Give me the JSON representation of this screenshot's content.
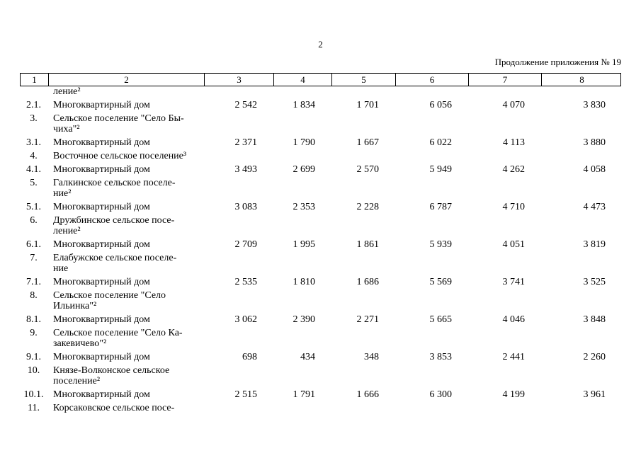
{
  "page": {
    "number": "2",
    "header_note": "Продолжение приложения № 19"
  },
  "table": {
    "column_numbers": [
      "1",
      "2",
      "3",
      "4",
      "5",
      "6",
      "7",
      "8"
    ],
    "rows": [
      {
        "num": "",
        "name": "ление²"
      },
      {
        "num": "2.1.",
        "name": "Многоквартирный дом",
        "v": [
          "2 542",
          "1 834",
          "1 701",
          "6 056",
          "4 070",
          "3 830"
        ]
      },
      {
        "num": "3.",
        "name": "Сельское поселение \"Село Бы-\nчиха\"²"
      },
      {
        "num": "3.1.",
        "name": "Многоквартирный дом",
        "v": [
          "2 371",
          "1 790",
          "1 667",
          "6 022",
          "4 113",
          "3 880"
        ]
      },
      {
        "num": "4.",
        "name": "Восточное сельское поселение³"
      },
      {
        "num": "4.1.",
        "name": "Многоквартирный дом",
        "v": [
          "3 493",
          "2 699",
          "2 570",
          "5 949",
          "4 262",
          "4 058"
        ]
      },
      {
        "num": "5.",
        "name": "Галкинское сельское поселе-\nние²"
      },
      {
        "num": "5.1.",
        "name": "Многоквартирный дом",
        "v": [
          "3 083",
          "2 353",
          "2 228",
          "6 787",
          "4 710",
          "4 473"
        ]
      },
      {
        "num": "6.",
        "name": "Дружбинское сельское посе-\nление²"
      },
      {
        "num": "6.1.",
        "name": "Многоквартирный дом",
        "v": [
          "2 709",
          "1 995",
          "1 861",
          "5 939",
          "4 051",
          "3 819"
        ]
      },
      {
        "num": "7.",
        "name": "Елабужское сельское поселе-\nние"
      },
      {
        "num": "7.1.",
        "name": "Многоквартирный дом",
        "v": [
          "2 535",
          "1 810",
          "1 686",
          "5 569",
          "3 741",
          "3 525"
        ]
      },
      {
        "num": "8.",
        "name": "Сельское поселение \"Село\nИльинка\"²"
      },
      {
        "num": "8.1.",
        "name": "Многоквартирный дом",
        "v": [
          "3 062",
          "2 390",
          "2 271",
          "5 665",
          "4 046",
          "3 848"
        ]
      },
      {
        "num": "9.",
        "name": "Сельское поселение \"Село Ка-\nзакевичево\"²"
      },
      {
        "num": "9.1.",
        "name": "Многоквартирный дом",
        "v": [
          "698",
          "434",
          "348",
          "3 853",
          "2 441",
          "2 260"
        ]
      },
      {
        "num": "10.",
        "name": "Князе-Волконское сельское\nпоселение²"
      },
      {
        "num": "10.1.",
        "name": "Многоквартирный дом",
        "v": [
          "2 515",
          "1 791",
          "1 666",
          "6 300",
          "4 199",
          "3 961"
        ]
      },
      {
        "num": "11.",
        "name": "Корсаковское сельское посе-"
      }
    ]
  }
}
